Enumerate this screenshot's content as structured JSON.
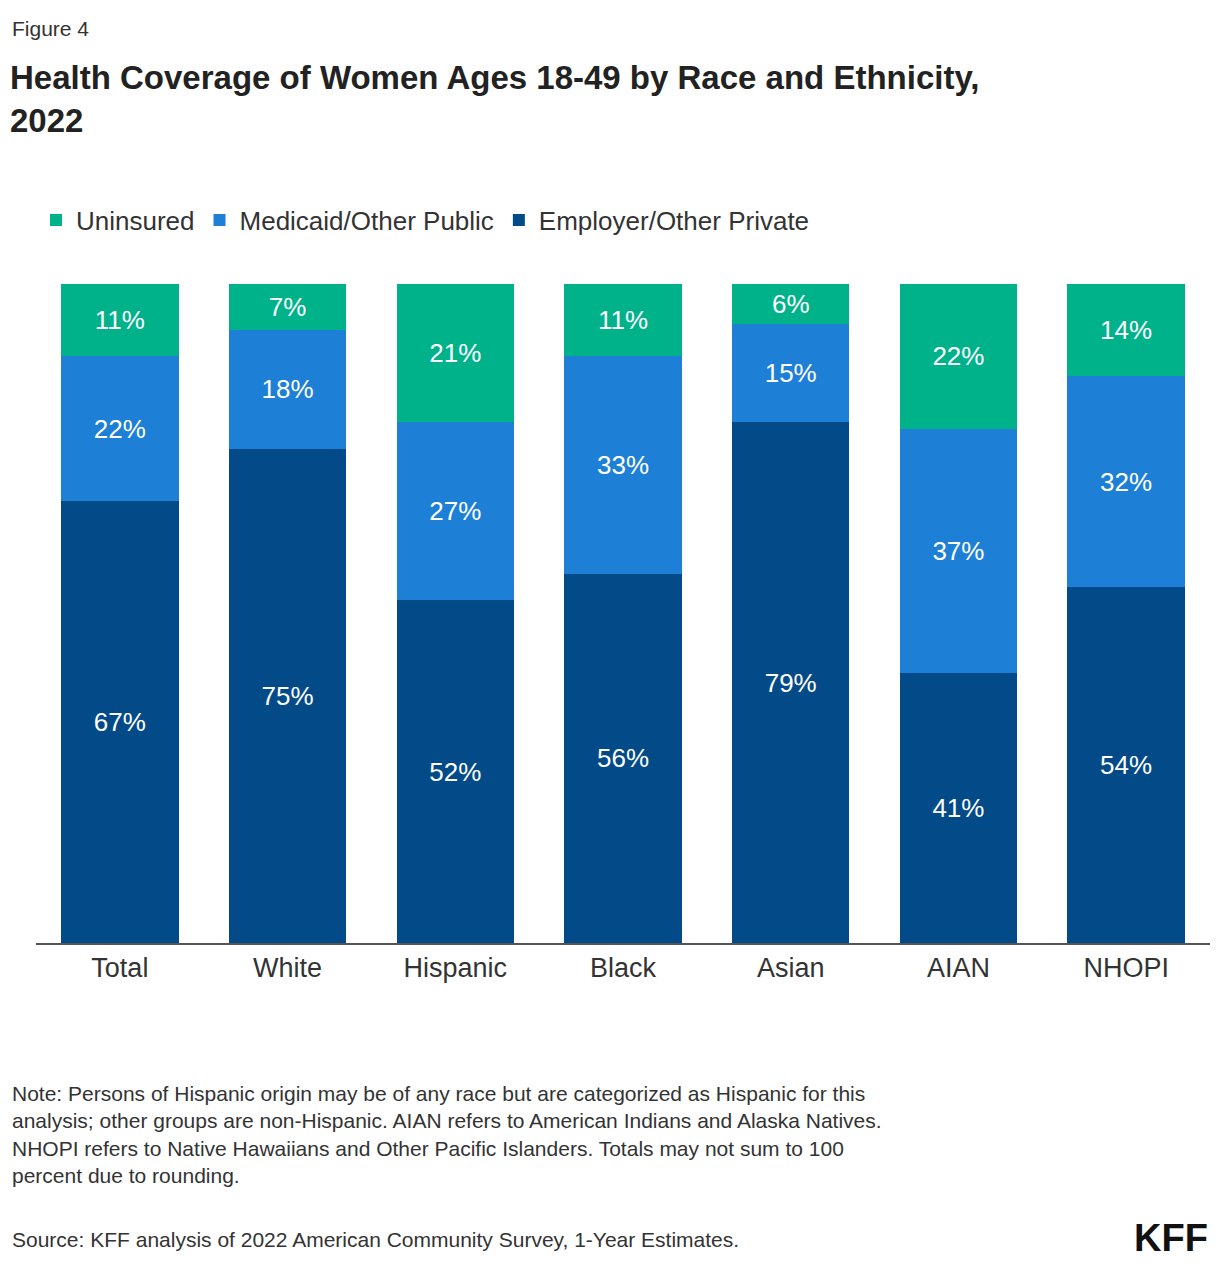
{
  "chart_data": {
    "type": "bar",
    "figure_label": "Figure 4",
    "title": "Health Coverage of Women Ages 18-49 by Race and Ethnicity, 2022",
    "categories": [
      "Total",
      "White",
      "Hispanic",
      "Black",
      "Asian",
      "AIAN",
      "NHOPI"
    ],
    "series": [
      {
        "name": "Employer/Other Private",
        "color": "#034a89",
        "values": [
          67,
          75,
          52,
          56,
          79,
          41,
          54
        ],
        "value_labels": [
          "67%",
          "75%",
          "52%",
          "56%",
          "79%",
          "41%",
          "54%"
        ]
      },
      {
        "name": "Medicaid/Other Public",
        "color": "#1d7fd6",
        "values": [
          22,
          18,
          27,
          33,
          15,
          37,
          32
        ],
        "value_labels": [
          "22%",
          "18%",
          "27%",
          "33%",
          "15%",
          "37%",
          "32%"
        ]
      },
      {
        "name": "Uninsured",
        "color": "#00b28a",
        "values": [
          11,
          7,
          21,
          11,
          6,
          22,
          14
        ],
        "value_labels": [
          "11%",
          "7%",
          "21%",
          "11%",
          "6%",
          "22%",
          "14%"
        ]
      }
    ],
    "stacked": true,
    "data_labels": true,
    "ylim": [
      0,
      100
    ],
    "yticks": [],
    "tick_labels": "x",
    "grid": false,
    "legend": "top left",
    "note": "Note: Persons of Hispanic origin may be of any race but are categorized as Hispanic for this analysis; other groups are non-Hispanic. AIAN refers to American Indians and Alaska Natives. NHOPI refers to Native Hawaiians and Other Pacific Islanders. Totals may not sum to 100 percent due to rounding.",
    "source": "Source: KFF analysis of 2022 American Community Survey, 1-Year Estimates.",
    "logo": "KFF"
  }
}
